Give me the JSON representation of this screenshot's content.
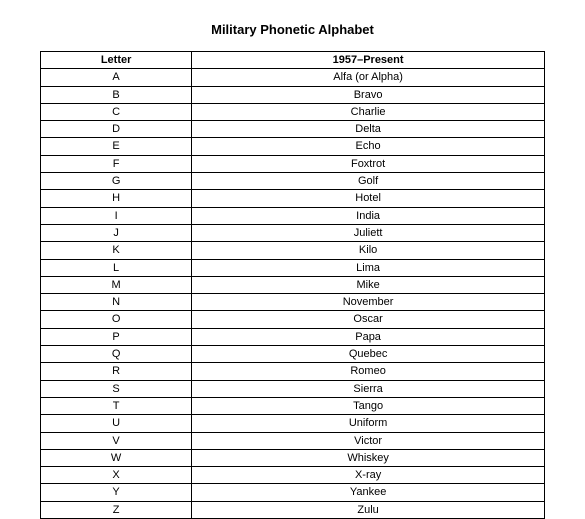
{
  "title": "Military Phonetic Alphabet",
  "table": {
    "columns": [
      "Letter",
      "1957–Present"
    ],
    "column_widths": [
      "30%",
      "70%"
    ],
    "rows": [
      [
        "A",
        "Alfa (or Alpha)"
      ],
      [
        "B",
        "Bravo"
      ],
      [
        "C",
        "Charlie"
      ],
      [
        "D",
        "Delta"
      ],
      [
        "E",
        "Echo"
      ],
      [
        "F",
        "Foxtrot"
      ],
      [
        "G",
        "Golf"
      ],
      [
        "H",
        "Hotel"
      ],
      [
        "I",
        "India"
      ],
      [
        "J",
        "Juliett"
      ],
      [
        "K",
        "Kilo"
      ],
      [
        "L",
        "Lima"
      ],
      [
        "M",
        "Mike"
      ],
      [
        "N",
        "November"
      ],
      [
        "O",
        "Oscar"
      ],
      [
        "P",
        "Papa"
      ],
      [
        "Q",
        "Quebec"
      ],
      [
        "R",
        "Romeo"
      ],
      [
        "S",
        "Sierra"
      ],
      [
        "T",
        "Tango"
      ],
      [
        "U",
        "Uniform"
      ],
      [
        "V",
        "Victor"
      ],
      [
        "W",
        "Whiskey"
      ],
      [
        "X",
        "X-ray"
      ],
      [
        "Y",
        "Yankee"
      ],
      [
        "Z",
        "Zulu"
      ]
    ],
    "border_color": "#000000",
    "background_color": "#ffffff",
    "header_fontsize": 11,
    "cell_fontsize": 11,
    "title_fontsize": 13
  }
}
